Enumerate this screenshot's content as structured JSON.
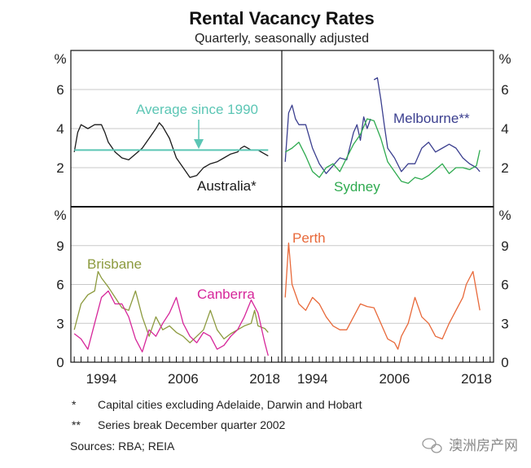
{
  "chart_data": {
    "type": "line",
    "title": "Rental Vacancy Rates",
    "subtitle": "Quarterly, seasonally adjusted",
    "unit_label": "%",
    "x_ticks": [
      "1994",
      "2006",
      "2018"
    ],
    "xlim": [
      1989.5,
      2020.5
    ],
    "notes": [
      "*",
      "Capital cities excluding Adelaide, Darwin and Hobart",
      "**",
      "Series break December quarter 2002",
      "Sources: RBA; REIA"
    ],
    "watermark": "澳洲房产网",
    "panels": [
      {
        "id": "top-left",
        "ylim": [
          0,
          8
        ],
        "y_ticks": [
          "2",
          "4",
          "6"
        ],
        "annotation": "Average since 1990",
        "series": [
          {
            "name": "Australia*",
            "color": "#1a1a1a",
            "x": [
              1990,
              1990.5,
              1991,
              1992,
              1993,
              1994,
              1994.5,
              1995,
              1996,
              1997,
              1998,
              1999,
              2000,
              2001,
              2002,
              2002.5,
              2003,
              2004,
              2004.5,
              2005,
              2006,
              2007,
              2008,
              2009,
              2010,
              2011,
              2012,
              2013,
              2014,
              2014.5,
              2015,
              2016,
              2017,
              2018,
              2018.5
            ],
            "y": [
              2.8,
              3.8,
              4.2,
              4.0,
              4.2,
              4.2,
              3.8,
              3.3,
              2.8,
              2.5,
              2.4,
              2.7,
              3.0,
              3.5,
              4.0,
              4.3,
              4.1,
              3.5,
              3.0,
              2.5,
              2.0,
              1.5,
              1.6,
              2.0,
              2.2,
              2.3,
              2.5,
              2.7,
              2.8,
              3.0,
              3.1,
              2.9,
              2.9,
              2.7,
              2.6
            ]
          },
          {
            "name": "Average since 1990",
            "color": "#5cc6b5",
            "x": [
              1990,
              2018.5
            ],
            "y": [
              2.9,
              2.9
            ]
          }
        ]
      },
      {
        "id": "top-right",
        "ylim": [
          0,
          8
        ],
        "y_ticks": [
          "2",
          "4",
          "6"
        ],
        "series": [
          {
            "name": "Melbourne**",
            "color": "#3b3f8f",
            "x": [
              1990,
              1990.5,
              1991,
              1991.5,
              1992,
              1993,
              1994,
              1995,
              1996,
              1997,
              1998,
              1999,
              2000,
              2000.5,
              2001,
              2001.5,
              2002,
              2002.5,
              2002.75,
              2003,
              2003.5,
              2004,
              2004.5,
              2005,
              2006,
              2007,
              2008,
              2009,
              2010,
              2011,
              2012,
              2013,
              2014,
              2015,
              2016,
              2017,
              2018,
              2018.5
            ],
            "y": [
              2.3,
              4.8,
              5.2,
              4.5,
              4.2,
              4.2,
              3.0,
              2.2,
              1.7,
              2.1,
              2.5,
              2.4,
              3.8,
              4.2,
              3.4,
              4.6,
              4.0,
              4.5,
              null,
              6.5,
              6.6,
              5.5,
              4.2,
              3.0,
              2.5,
              1.8,
              2.2,
              2.2,
              3.0,
              3.3,
              2.8,
              3.0,
              3.2,
              3.0,
              2.5,
              2.2,
              2.0,
              1.8
            ]
          },
          {
            "name": "Sydney",
            "color": "#2eaa4f",
            "x": [
              1990,
              1991,
              1992,
              1993,
              1994,
              1995,
              1996,
              1997,
              1998,
              1999,
              2000,
              2001,
              2002,
              2003,
              2004,
              2005,
              2006,
              2007,
              2008,
              2009,
              2010,
              2011,
              2012,
              2013,
              2014,
              2015,
              2016,
              2017,
              2018,
              2018.5
            ],
            "y": [
              2.8,
              3.0,
              3.3,
              2.6,
              1.8,
              1.5,
              2.0,
              2.2,
              1.8,
              2.5,
              3.2,
              3.7,
              4.5,
              4.4,
              3.5,
              2.3,
              1.8,
              1.3,
              1.2,
              1.5,
              1.4,
              1.6,
              1.9,
              2.2,
              1.7,
              2.0,
              2.0,
              1.9,
              2.1,
              2.9
            ]
          }
        ]
      },
      {
        "id": "bottom-left",
        "ylim": [
          0,
          12
        ],
        "y_ticks": [
          "0",
          "3",
          "6",
          "9"
        ],
        "series": [
          {
            "name": "Brisbane",
            "color": "#8c9a3e",
            "x": [
              1990,
              1991,
              1992,
              1993,
              1993.5,
              1994,
              1995,
              1996,
              1997,
              1998,
              1999,
              2000,
              2001,
              2002,
              2003,
              2004,
              2005,
              2006,
              2007,
              2008,
              2009,
              2010,
              2011,
              2012,
              2013,
              2014,
              2015,
              2016,
              2016.5,
              2017,
              2018,
              2018.5
            ],
            "y": [
              2.5,
              4.5,
              5.2,
              5.5,
              7.0,
              6.5,
              5.8,
              5.0,
              4.2,
              4.0,
              5.5,
              3.5,
              2.0,
              3.5,
              2.5,
              2.8,
              2.3,
              2.0,
              1.5,
              2.0,
              2.5,
              4.0,
              2.5,
              1.8,
              2.2,
              2.5,
              2.8,
              3.0,
              4.0,
              2.8,
              2.6,
              2.3
            ]
          },
          {
            "name": "Canberra",
            "color": "#d6279a",
            "x": [
              1990,
              1991,
              1992,
              1993,
              1994,
              1995,
              1996,
              1997,
              1998,
              1999,
              2000,
              2001,
              2002,
              2003,
              2004,
              2005,
              2006,
              2007,
              2008,
              2009,
              2010,
              2011,
              2012,
              2013,
              2014,
              2015,
              2016,
              2017,
              2018,
              2018.5
            ],
            "y": [
              2.2,
              1.8,
              1.0,
              3.0,
              5.0,
              5.5,
              4.5,
              4.5,
              3.5,
              1.8,
              0.8,
              2.5,
              2.0,
              3.0,
              3.8,
              5.0,
              3.0,
              2.0,
              1.5,
              2.3,
              2.0,
              1.0,
              1.3,
              2.0,
              2.5,
              3.5,
              4.8,
              3.8,
              1.5,
              0.5
            ]
          }
        ]
      },
      {
        "id": "bottom-right",
        "ylim": [
          0,
          12
        ],
        "y_ticks": [
          "0",
          "3",
          "6",
          "9"
        ],
        "series": [
          {
            "name": "Perth",
            "color": "#e8693a",
            "x": [
              1990,
              1990.5,
              1991,
              1992,
              1993,
              1994,
              1995,
              1996,
              1997,
              1998,
              1999,
              2000,
              2001,
              2002,
              2003,
              2004,
              2005,
              2006,
              2006.5,
              2007,
              2008,
              2009,
              2010,
              2011,
              2012,
              2013,
              2014,
              2015,
              2016,
              2016.5,
              2017,
              2017.5,
              2018,
              2018.5
            ],
            "y": [
              5.0,
              9.2,
              6.0,
              4.5,
              4.0,
              5.0,
              4.5,
              3.5,
              2.8,
              2.5,
              2.5,
              3.5,
              4.5,
              4.3,
              4.2,
              3.0,
              1.8,
              1.5,
              1.0,
              2.0,
              3.0,
              5.0,
              3.5,
              3.0,
              2.0,
              1.8,
              3.0,
              4.0,
              5.0,
              6.0,
              6.5,
              7.0,
              5.5,
              4.0
            ]
          }
        ]
      }
    ]
  }
}
